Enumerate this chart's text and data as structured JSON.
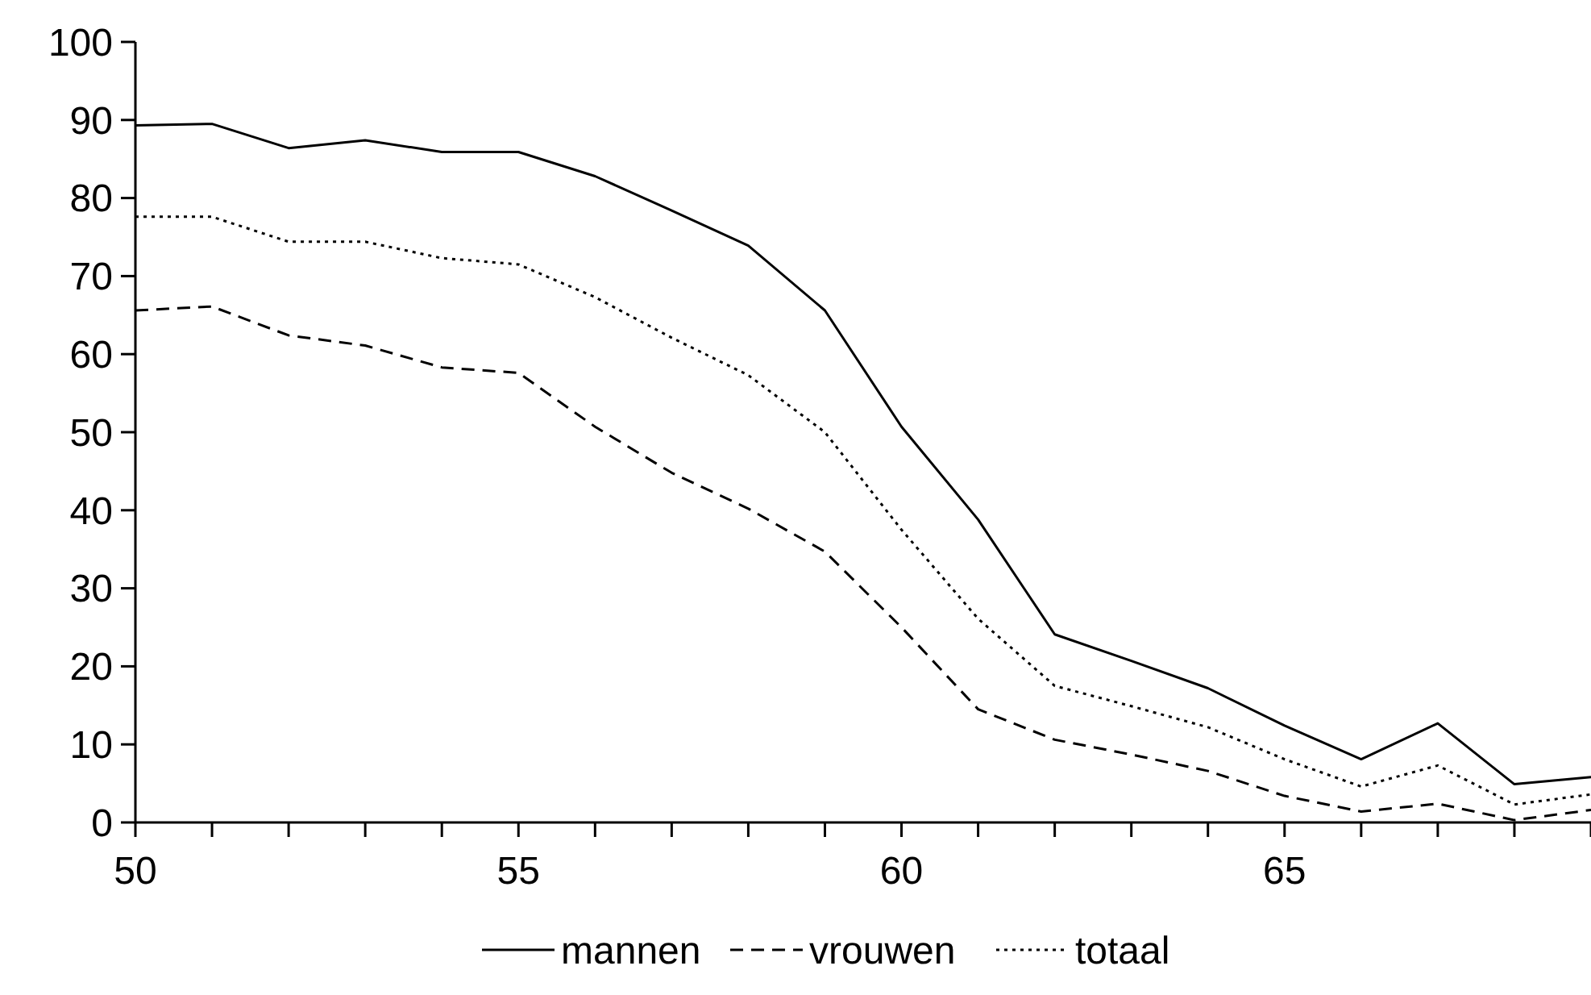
{
  "chart_data": {
    "type": "line",
    "x": [
      50,
      51,
      52,
      53,
      54,
      55,
      56,
      57,
      58,
      59,
      60,
      61,
      62,
      63,
      64,
      65,
      66,
      67,
      68,
      69
    ],
    "xlim": [
      50,
      69
    ],
    "xticks": [
      {
        "value": 50,
        "label": "50"
      },
      {
        "value": 51,
        "label": null
      },
      {
        "value": 52,
        "label": null
      },
      {
        "value": 53,
        "label": null
      },
      {
        "value": 54,
        "label": null
      },
      {
        "value": 55,
        "label": "55"
      },
      {
        "value": 56,
        "label": null
      },
      {
        "value": 57,
        "label": null
      },
      {
        "value": 58,
        "label": null
      },
      {
        "value": 59,
        "label": null
      },
      {
        "value": 60,
        "label": "60"
      },
      {
        "value": 61,
        "label": null
      },
      {
        "value": 62,
        "label": null
      },
      {
        "value": 63,
        "label": null
      },
      {
        "value": 64,
        "label": null
      },
      {
        "value": 65,
        "label": "65"
      },
      {
        "value": 66,
        "label": null
      },
      {
        "value": 67,
        "label": null
      },
      {
        "value": 68,
        "label": null
      },
      {
        "value": 69,
        "label": null
      }
    ],
    "ylim": [
      0,
      100
    ],
    "yticks": [
      0,
      10,
      20,
      30,
      40,
      50,
      60,
      70,
      80,
      90,
      100
    ],
    "legend": "bottom",
    "grid": false,
    "marker": "none",
    "series": [
      {
        "name": "mannen",
        "color": "#000000",
        "line_style": "solid",
        "values": [
          89.3,
          89.5,
          86.4,
          87.4,
          85.9,
          85.9,
          82.8,
          78.4,
          73.9,
          65.6,
          50.7,
          38.8,
          24.1,
          20.7,
          17.2,
          12.4,
          8.1,
          12.7,
          4.9,
          5.8
        ]
      },
      {
        "name": "vrouwen",
        "color": "#000000",
        "line_style": "dashed",
        "values": [
          65.6,
          66.1,
          62.4,
          61.1,
          58.3,
          57.6,
          50.7,
          44.8,
          40.2,
          34.7,
          25,
          14.5,
          10.6,
          8.7,
          6.6,
          3.4,
          1.4,
          2.4,
          0.3,
          1.6
        ]
      },
      {
        "name": "totaal",
        "color": "#000000",
        "line_style": "dotted",
        "values": [
          77.6,
          77.6,
          74.4,
          74.4,
          72.3,
          71.5,
          67.3,
          62.1,
          57.3,
          50,
          37.5,
          26.1,
          17.5,
          14.9,
          12.2,
          8.1,
          4.6,
          7.3,
          2.3,
          3.6
        ]
      }
    ]
  }
}
